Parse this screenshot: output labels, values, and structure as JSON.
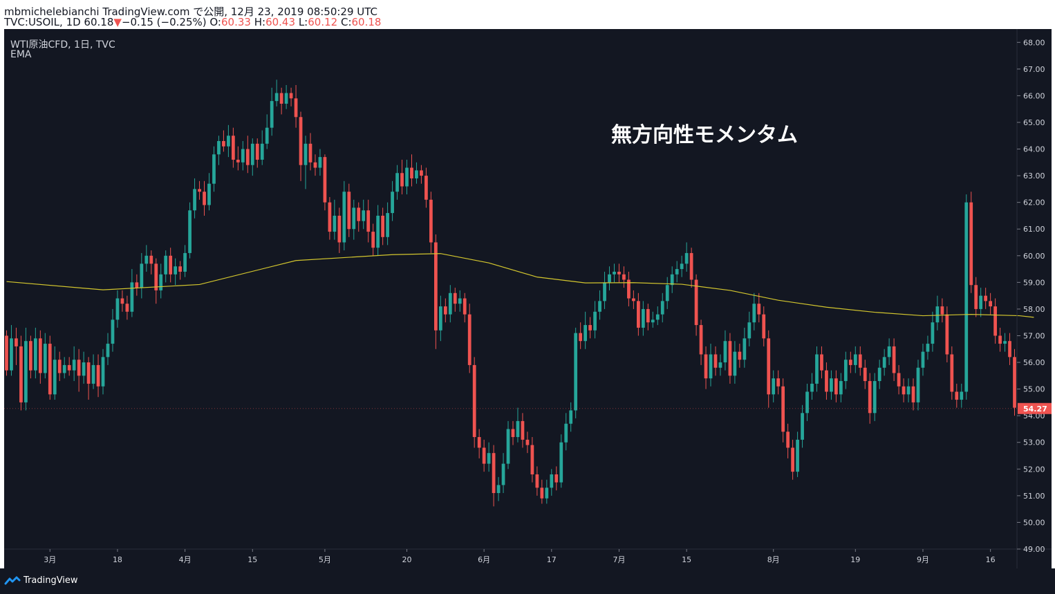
{
  "header": {
    "line1": "mbmichelebianchi TradingView.com で公開, 12月 23, 2019 08:50:29 UTC",
    "symbol_prefix": "TVC:USOIL, 1D 60.18",
    "arrow": "▼",
    "change": "−0.15 (−0.25%)",
    "o_label": "O:",
    "o_val": "60.33",
    "h_label": "H:",
    "h_val": "60.43",
    "l_label": "L:",
    "l_val": "60.12",
    "c_label": "C:",
    "c_val": "60.18"
  },
  "legend": {
    "symbol_line": "WTI原油CFD, 1日, TVC",
    "indicator": "EMA"
  },
  "annotation": "無方向性モメンタム",
  "footer": {
    "brand": "TradingView"
  },
  "colors": {
    "background": "#131722",
    "up": "#26a69a",
    "down": "#ef5350",
    "ema": "#d4c72e",
    "text": "#d1d4dc",
    "grid_border": "#2a2e39"
  },
  "chart_data": {
    "type": "candlestick",
    "symbol": "TVC:USOIL",
    "ylim": [
      49.0,
      68.5
    ],
    "yticks": [
      "68.00",
      "67.00",
      "66.00",
      "65.00",
      "64.00",
      "63.00",
      "62.00",
      "61.00",
      "60.00",
      "59.00",
      "58.00",
      "57.00",
      "56.00",
      "55.00",
      "54.00",
      "53.00",
      "52.00",
      "51.00",
      "50.00",
      "49.00"
    ],
    "xticks": [
      {
        "i": 9,
        "label": "3月"
      },
      {
        "i": 23,
        "label": "18"
      },
      {
        "i": 37,
        "label": "4月"
      },
      {
        "i": 51,
        "label": "15"
      },
      {
        "i": 66,
        "label": "5月"
      },
      {
        "i": 83,
        "label": "20"
      },
      {
        "i": 99,
        "label": "6月"
      },
      {
        "i": 113,
        "label": "17"
      },
      {
        "i": 127,
        "label": "7月"
      },
      {
        "i": 141,
        "label": "15"
      },
      {
        "i": 159,
        "label": "8月"
      },
      {
        "i": 176,
        "label": "19"
      },
      {
        "i": 190,
        "label": "9月"
      },
      {
        "i": 204,
        "label": "16"
      }
    ],
    "last_price_label": "54.27",
    "last_price": 54.27,
    "candles": [
      [
        57.0,
        55.7,
        57.2,
        55.5
      ],
      [
        55.7,
        56.9,
        57.4,
        55.5
      ],
      [
        56.9,
        56.6,
        57.3,
        55.9
      ],
      [
        56.6,
        54.5,
        57.0,
        54.2
      ],
      [
        54.5,
        56.8,
        57.3,
        54.2
      ],
      [
        56.8,
        55.7,
        57.0,
        55.4
      ],
      [
        55.7,
        56.9,
        57.3,
        55.4
      ],
      [
        56.9,
        55.6,
        57.2,
        55.2
      ],
      [
        55.6,
        56.7,
        57.1,
        55.4
      ],
      [
        56.7,
        54.8,
        57.0,
        54.6
      ],
      [
        54.8,
        56.1,
        56.6,
        54.6
      ],
      [
        56.1,
        55.6,
        56.4,
        55.3
      ],
      [
        55.6,
        55.9,
        56.2,
        55.4
      ],
      [
        55.9,
        55.7,
        56.2,
        55.5
      ],
      [
        55.7,
        56.1,
        56.6,
        55.3
      ],
      [
        56.1,
        55.5,
        56.5,
        54.9
      ],
      [
        55.5,
        56.0,
        56.4,
        55.2
      ],
      [
        56.0,
        55.2,
        56.2,
        54.6
      ],
      [
        55.2,
        55.9,
        56.3,
        55.0
      ],
      [
        55.9,
        55.1,
        56.3,
        54.7
      ],
      [
        55.1,
        56.2,
        56.5,
        54.8
      ],
      [
        56.2,
        56.7,
        57.1,
        55.9
      ],
      [
        56.7,
        57.6,
        58.0,
        56.4
      ],
      [
        57.6,
        58.4,
        58.7,
        57.3
      ],
      [
        58.4,
        58.2,
        58.7,
        57.9
      ],
      [
        58.2,
        57.9,
        58.5,
        57.6
      ],
      [
        57.9,
        59.0,
        59.5,
        57.7
      ],
      [
        59.0,
        58.8,
        59.3,
        58.5
      ],
      [
        58.8,
        59.7,
        60.1,
        58.4
      ],
      [
        59.7,
        60.0,
        60.4,
        59.4
      ],
      [
        60.0,
        59.7,
        60.2,
        59.3
      ],
      [
        59.7,
        58.7,
        59.9,
        58.2
      ],
      [
        58.7,
        59.3,
        59.7,
        58.4
      ],
      [
        59.3,
        60.0,
        60.2,
        59.0
      ],
      [
        60.0,
        59.3,
        60.3,
        59.0
      ],
      [
        59.3,
        59.6,
        59.9,
        58.9
      ],
      [
        59.6,
        59.4,
        59.8,
        59.1
      ],
      [
        59.4,
        60.1,
        60.4,
        59.2
      ],
      [
        60.1,
        61.7,
        62.0,
        59.9
      ],
      [
        61.7,
        62.5,
        62.9,
        61.4
      ],
      [
        62.5,
        62.4,
        62.8,
        62.1
      ],
      [
        62.4,
        61.9,
        62.8,
        61.5
      ],
      [
        61.9,
        62.7,
        63.1,
        61.7
      ],
      [
        62.7,
        63.8,
        64.1,
        62.4
      ],
      [
        63.8,
        64.3,
        64.5,
        63.4
      ],
      [
        64.3,
        64.1,
        64.7,
        63.9
      ],
      [
        64.1,
        64.5,
        64.9,
        63.7
      ],
      [
        64.5,
        63.6,
        64.8,
        63.3
      ],
      [
        63.6,
        63.5,
        64.1,
        63.2
      ],
      [
        63.5,
        64.0,
        64.3,
        63.2
      ],
      [
        64.0,
        63.4,
        64.5,
        63.1
      ],
      [
        63.4,
        64.2,
        64.4,
        63.0
      ],
      [
        64.2,
        63.6,
        64.4,
        63.3
      ],
      [
        63.6,
        64.2,
        64.7,
        63.4
      ],
      [
        64.2,
        64.8,
        65.3,
        64.0
      ],
      [
        64.8,
        65.8,
        66.3,
        64.5
      ],
      [
        65.8,
        66.1,
        66.6,
        65.6
      ],
      [
        66.1,
        65.7,
        66.3,
        65.3
      ],
      [
        65.7,
        66.1,
        66.4,
        65.5
      ],
      [
        66.1,
        65.9,
        66.3,
        65.6
      ],
      [
        65.9,
        65.2,
        66.4,
        64.8
      ],
      [
        65.2,
        63.4,
        65.4,
        62.8
      ],
      [
        63.4,
        64.2,
        64.5,
        62.5
      ],
      [
        64.2,
        63.5,
        64.6,
        63.2
      ],
      [
        63.5,
        63.3,
        63.8,
        63.0
      ],
      [
        63.3,
        63.7,
        64.0,
        63.0
      ],
      [
        63.7,
        62.0,
        63.8,
        61.7
      ],
      [
        62.0,
        60.9,
        62.2,
        60.6
      ],
      [
        60.9,
        61.5,
        62.1,
        60.6
      ],
      [
        61.5,
        60.5,
        61.8,
        60.1
      ],
      [
        60.5,
        62.4,
        62.8,
        60.2
      ],
      [
        62.4,
        61.0,
        62.7,
        60.7
      ],
      [
        61.0,
        61.8,
        62.1,
        60.6
      ],
      [
        61.8,
        61.3,
        62.0,
        60.9
      ],
      [
        61.3,
        61.7,
        62.1,
        61.0
      ],
      [
        61.7,
        60.9,
        62.1,
        60.5
      ],
      [
        60.9,
        60.3,
        61.2,
        60.0
      ],
      [
        60.3,
        61.5,
        61.9,
        60.0
      ],
      [
        61.5,
        60.7,
        61.8,
        60.4
      ],
      [
        60.7,
        61.6,
        62.0,
        60.4
      ],
      [
        61.6,
        62.4,
        62.8,
        61.3
      ],
      [
        62.4,
        63.1,
        63.4,
        62.1
      ],
      [
        63.1,
        62.6,
        63.6,
        62.3
      ],
      [
        62.6,
        63.3,
        63.6,
        62.3
      ],
      [
        63.3,
        62.9,
        63.8,
        62.6
      ],
      [
        62.9,
        63.2,
        63.5,
        62.7
      ],
      [
        63.2,
        63.0,
        63.4,
        62.7
      ],
      [
        63.0,
        62.1,
        63.3,
        61.8
      ],
      [
        62.1,
        60.5,
        62.4,
        60.1
      ],
      [
        60.5,
        57.2,
        60.8,
        56.5
      ],
      [
        57.2,
        58.1,
        58.5,
        56.8
      ],
      [
        58.1,
        57.8,
        58.4,
        57.5
      ],
      [
        57.8,
        58.6,
        58.9,
        57.5
      ],
      [
        58.6,
        58.2,
        58.8,
        57.9
      ],
      [
        58.2,
        58.4,
        58.7,
        57.9
      ],
      [
        58.4,
        57.8,
        58.6,
        57.5
      ],
      [
        57.8,
        55.9,
        58.2,
        55.6
      ],
      [
        55.9,
        53.2,
        56.2,
        52.8
      ],
      [
        53.2,
        52.8,
        53.5,
        52.4
      ],
      [
        52.8,
        52.2,
        53.1,
        51.9
      ],
      [
        52.2,
        52.6,
        53.0,
        51.9
      ],
      [
        52.6,
        51.1,
        52.9,
        50.6
      ],
      [
        51.1,
        51.4,
        51.7,
        50.8
      ],
      [
        51.4,
        52.2,
        52.6,
        51.1
      ],
      [
        52.2,
        53.5,
        53.8,
        52.0
      ],
      [
        53.5,
        53.2,
        53.8,
        52.9
      ],
      [
        53.2,
        53.8,
        54.3,
        53.0
      ],
      [
        53.8,
        53.1,
        54.1,
        52.8
      ],
      [
        53.1,
        52.9,
        53.4,
        52.6
      ],
      [
        52.9,
        51.8,
        53.2,
        51.5
      ],
      [
        51.8,
        51.3,
        52.1,
        51.0
      ],
      [
        51.3,
        50.9,
        51.6,
        50.7
      ],
      [
        50.9,
        51.3,
        51.6,
        50.7
      ],
      [
        51.3,
        51.8,
        52.0,
        51.0
      ],
      [
        51.8,
        51.5,
        52.1,
        51.2
      ],
      [
        51.5,
        53.0,
        53.3,
        51.3
      ],
      [
        53.0,
        53.7,
        54.1,
        52.7
      ],
      [
        53.7,
        54.2,
        54.5,
        53.4
      ],
      [
        54.2,
        57.1,
        57.3,
        53.9
      ],
      [
        57.1,
        56.8,
        57.5,
        56.5
      ],
      [
        56.8,
        57.4,
        57.9,
        56.5
      ],
      [
        57.4,
        57.2,
        57.7,
        56.9
      ],
      [
        57.2,
        57.9,
        58.3,
        56.9
      ],
      [
        57.9,
        58.3,
        58.7,
        57.6
      ],
      [
        58.3,
        59.0,
        59.4,
        58.0
      ],
      [
        59.0,
        59.3,
        59.6,
        58.7
      ],
      [
        59.3,
        59.4,
        59.7,
        59.0
      ],
      [
        59.4,
        59.3,
        59.7,
        59.0
      ],
      [
        59.3,
        59.1,
        59.6,
        58.8
      ],
      [
        59.1,
        58.4,
        59.4,
        58.1
      ],
      [
        58.4,
        58.3,
        58.7,
        58.0
      ],
      [
        58.3,
        57.3,
        58.6,
        57.0
      ],
      [
        57.3,
        58.0,
        58.3,
        57.0
      ],
      [
        58.0,
        57.5,
        58.2,
        57.2
      ],
      [
        57.5,
        57.6,
        57.9,
        57.3
      ],
      [
        57.6,
        57.8,
        58.1,
        57.4
      ],
      [
        57.8,
        58.3,
        58.6,
        57.5
      ],
      [
        58.3,
        58.9,
        59.2,
        58.0
      ],
      [
        58.9,
        59.3,
        59.6,
        58.6
      ],
      [
        59.3,
        59.5,
        59.8,
        59.0
      ],
      [
        59.5,
        59.7,
        60.0,
        59.2
      ],
      [
        59.7,
        60.1,
        60.5,
        59.4
      ],
      [
        60.1,
        59.1,
        60.3,
        58.8
      ],
      [
        59.1,
        57.4,
        59.3,
        57.0
      ],
      [
        57.4,
        56.3,
        57.6,
        55.9
      ],
      [
        56.3,
        55.4,
        56.6,
        55.0
      ],
      [
        55.4,
        56.3,
        56.7,
        55.1
      ],
      [
        56.3,
        55.8,
        56.6,
        55.5
      ],
      [
        55.8,
        56.0,
        56.3,
        55.5
      ],
      [
        56.0,
        56.8,
        57.2,
        55.7
      ],
      [
        56.8,
        55.5,
        57.1,
        55.2
      ],
      [
        55.5,
        56.4,
        56.8,
        55.2
      ],
      [
        56.4,
        56.1,
        56.7,
        55.8
      ],
      [
        56.1,
        56.9,
        57.3,
        55.8
      ],
      [
        56.9,
        57.5,
        57.9,
        56.6
      ],
      [
        57.5,
        58.2,
        58.6,
        57.2
      ],
      [
        58.2,
        57.8,
        58.6,
        57.5
      ],
      [
        57.8,
        56.9,
        58.1,
        56.6
      ],
      [
        56.9,
        54.8,
        57.2,
        54.3
      ],
      [
        54.8,
        55.4,
        55.7,
        54.5
      ],
      [
        55.4,
        55.1,
        55.7,
        54.8
      ],
      [
        55.1,
        53.4,
        55.4,
        53.0
      ],
      [
        53.4,
        52.8,
        53.7,
        52.4
      ],
      [
        52.8,
        51.9,
        53.1,
        51.6
      ],
      [
        51.9,
        53.1,
        53.4,
        51.7
      ],
      [
        53.1,
        54.1,
        54.4,
        52.8
      ],
      [
        54.1,
        54.9,
        55.2,
        53.8
      ],
      [
        54.9,
        55.2,
        55.6,
        54.6
      ],
      [
        55.2,
        56.3,
        56.6,
        54.9
      ],
      [
        56.3,
        55.7,
        56.6,
        55.4
      ],
      [
        55.7,
        54.9,
        56.0,
        54.6
      ],
      [
        54.9,
        55.4,
        55.7,
        54.6
      ],
      [
        55.4,
        54.8,
        55.7,
        54.5
      ],
      [
        54.8,
        55.3,
        55.6,
        54.5
      ],
      [
        55.3,
        56.1,
        56.4,
        55.0
      ],
      [
        56.1,
        55.9,
        56.4,
        55.6
      ],
      [
        55.9,
        56.3,
        56.6,
        55.6
      ],
      [
        56.3,
        55.8,
        56.6,
        55.5
      ],
      [
        55.8,
        55.3,
        56.1,
        55.0
      ],
      [
        55.3,
        54.1,
        55.6,
        53.7
      ],
      [
        54.1,
        55.3,
        55.6,
        53.8
      ],
      [
        55.3,
        55.8,
        56.1,
        55.0
      ],
      [
        55.8,
        56.2,
        56.5,
        55.5
      ],
      [
        56.2,
        56.6,
        56.9,
        55.9
      ],
      [
        56.6,
        55.6,
        56.9,
        55.3
      ],
      [
        55.6,
        55.1,
        55.9,
        54.8
      ],
      [
        55.1,
        54.8,
        55.4,
        54.5
      ],
      [
        54.8,
        55.1,
        55.4,
        54.5
      ],
      [
        55.1,
        54.5,
        55.4,
        54.2
      ],
      [
        54.5,
        55.8,
        56.1,
        54.2
      ],
      [
        55.8,
        56.4,
        56.7,
        55.5
      ],
      [
        56.4,
        56.7,
        57.0,
        56.1
      ],
      [
        56.7,
        57.5,
        57.9,
        56.4
      ],
      [
        57.5,
        58.1,
        58.5,
        57.2
      ],
      [
        58.1,
        57.8,
        58.4,
        57.5
      ],
      [
        57.8,
        56.3,
        58.1,
        56.0
      ],
      [
        56.3,
        54.9,
        56.6,
        54.6
      ],
      [
        54.9,
        54.6,
        55.2,
        54.3
      ],
      [
        54.6,
        54.9,
        55.2,
        54.3
      ],
      [
        54.9,
        62.0,
        62.3,
        54.6
      ],
      [
        62.0,
        58.9,
        62.4,
        58.6
      ],
      [
        58.9,
        58.0,
        59.2,
        57.7
      ],
      [
        58.0,
        58.5,
        58.8,
        57.7
      ],
      [
        58.5,
        58.3,
        58.8,
        58.0
      ],
      [
        58.3,
        58.1,
        58.6,
        57.8
      ],
      [
        58.1,
        57.0,
        58.4,
        56.7
      ],
      [
        57.0,
        56.7,
        57.3,
        56.4
      ],
      [
        56.7,
        56.8,
        57.1,
        56.4
      ],
      [
        56.8,
        56.2,
        57.1,
        55.9
      ],
      [
        56.2,
        54.3,
        56.5,
        54.0
      ]
    ],
    "ema": [
      [
        0,
        59.03
      ],
      [
        20,
        58.72
      ],
      [
        40,
        58.92
      ],
      [
        60,
        59.82
      ],
      [
        80,
        60.04
      ],
      [
        90,
        60.08
      ],
      [
        100,
        59.73
      ],
      [
        110,
        59.2
      ],
      [
        120,
        58.98
      ],
      [
        130,
        58.99
      ],
      [
        140,
        58.93
      ],
      [
        150,
        58.7
      ],
      [
        160,
        58.33
      ],
      [
        170,
        58.07
      ],
      [
        180,
        57.88
      ],
      [
        190,
        57.75
      ],
      [
        200,
        57.8
      ],
      [
        210,
        57.75
      ],
      [
        213,
        57.69
      ]
    ]
  }
}
